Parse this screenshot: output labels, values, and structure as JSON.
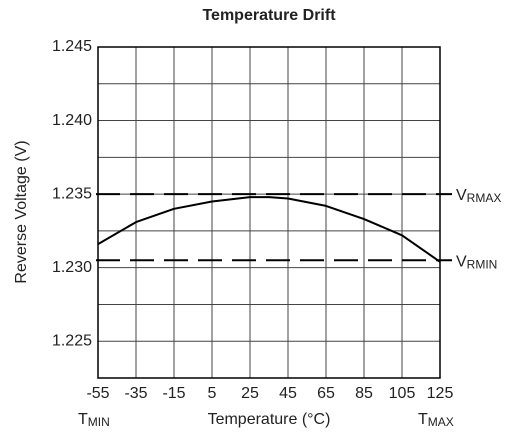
{
  "chart_data": {
    "type": "line",
    "title": "Temperature Drift",
    "xlabel": "Temperature (°C)",
    "ylabel": "Reverse Voltage (V)",
    "x": [
      -55,
      -35,
      -15,
      5,
      25,
      35,
      45,
      65,
      85,
      105,
      125
    ],
    "values": [
      1.2316,
      1.2331,
      1.234,
      1.2345,
      1.2348,
      1.2348,
      1.2347,
      1.2342,
      1.2333,
      1.2322,
      1.2304
    ],
    "color": "#000000",
    "xlim": [
      -55,
      125
    ],
    "xticks": [
      -55,
      -35,
      -15,
      5,
      25,
      45,
      65,
      85,
      105,
      125
    ],
    "ylim": [
      1.2225,
      1.245
    ],
    "yticks": [
      {
        "value": 1.225,
        "label": "1.225"
      },
      {
        "value": 1.23,
        "label": "1.230"
      },
      {
        "value": 1.235,
        "label": "1.235"
      },
      {
        "value": 1.24,
        "label": "1.240"
      },
      {
        "value": 1.245,
        "label": "1.245"
      }
    ],
    "minor_yticks": [
      1.2275,
      1.2325,
      1.2375,
      1.2425
    ],
    "grid": true,
    "reference_lines": [
      {
        "value": 1.235,
        "label": "V",
        "sub": "RMAX"
      },
      {
        "value": 1.2305,
        "label": "V",
        "sub": "RMIN"
      }
    ],
    "x_end_labels": [
      {
        "label": "T",
        "sub": "MIN"
      },
      {
        "label": "T",
        "sub": "MAX"
      }
    ]
  }
}
